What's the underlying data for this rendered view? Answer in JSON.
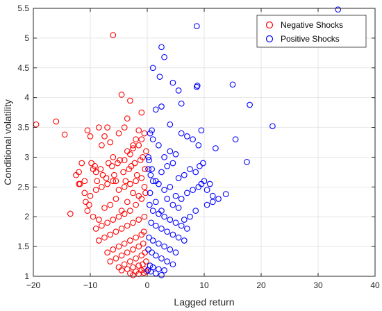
{
  "chart_data": {
    "type": "scatter",
    "title": "",
    "xlabel": "Lagged return",
    "ylabel": "Conditional volatility",
    "xlim": [
      -20,
      40
    ],
    "ylim": [
      1,
      5.5
    ],
    "xticks": [
      -20,
      -10,
      0,
      10,
      20,
      30,
      40
    ],
    "yticks": [
      1,
      1.5,
      2,
      2.5,
      3,
      3.5,
      4,
      4.5,
      5,
      5.5
    ],
    "grid": true,
    "legend_position": "top-right",
    "marker": "open-circle",
    "series": [
      {
        "name": "Negative Shocks",
        "color": "#ff0000",
        "x": [
          -19.5,
          -16,
          -14.5,
          -13.5,
          -12,
          -11.5,
          -10.5,
          -10,
          -9.5,
          -8.5,
          -8,
          -7.5,
          -7,
          -6.5,
          -6,
          -5.5,
          -5,
          -4.5,
          -4,
          -3.5,
          -3,
          -2.5,
          -2,
          -1.5,
          -1,
          -0.5,
          -6,
          -3.5,
          -3,
          -4,
          -2.5,
          -1.5,
          -1,
          -12.5,
          -11.8,
          -11,
          -10.8,
          -10.2,
          -9.8,
          -9.2,
          -9,
          -8.8,
          -8.2,
          -7.8,
          -7.2,
          -6.8,
          -6.2,
          -5.8,
          -5.2,
          -4.8,
          -4.2,
          -3.8,
          -3.2,
          -2.8,
          -2.2,
          -1.8,
          -1.2,
          -0.8,
          -0.4,
          -0.2,
          -10.5,
          -9.5,
          -8.5,
          -7.5,
          -6.5,
          -5.5,
          -4.5,
          -3.5,
          -2.5,
          -1.5,
          -0.5,
          -9,
          -8,
          -7,
          -6,
          -5,
          -4,
          -3,
          -2,
          -1,
          -0.3,
          -8.5,
          -7.5,
          -6.5,
          -5.5,
          -4.5,
          -3.5,
          -2.5,
          -1.5,
          -0.5,
          -7,
          -6,
          -5,
          -4,
          -3,
          -2,
          -1,
          -0.6,
          -6.5,
          -5.5,
          -4.5,
          -3.5,
          -2.5,
          -1.5,
          -0.7,
          -5,
          -4,
          -3,
          -2,
          -1,
          -0.4,
          -4.5,
          -3.5,
          -2.5,
          -1.5,
          -0.8,
          -0.2,
          -3,
          -2,
          -1,
          -0.5,
          -2.5,
          -1.5,
          -0.6,
          -0.1,
          -12,
          -11,
          -10,
          -9,
          -8,
          -7,
          -6,
          -5,
          -4,
          -3,
          -2,
          -1
        ],
        "y": [
          3.55,
          3.6,
          3.38,
          2.05,
          2.75,
          2.9,
          3.45,
          3.35,
          2.8,
          3.5,
          3.2,
          3.35,
          3.5,
          3.25,
          5.05,
          2.6,
          3.4,
          4.05,
          3.5,
          3.65,
          3.95,
          3.2,
          3.3,
          3.45,
          3.75,
          3.4,
          3.0,
          3.1,
          3.05,
          2.95,
          3.15,
          3.2,
          3.3,
          2.7,
          2.55,
          2.6,
          2.25,
          2.2,
          2.9,
          2.85,
          2.75,
          2.6,
          2.8,
          2.7,
          2.65,
          2.9,
          2.85,
          2.7,
          2.9,
          2.95,
          2.75,
          2.6,
          2.8,
          2.85,
          2.9,
          2.7,
          2.95,
          3.0,
          2.8,
          3.1,
          2.1,
          2.0,
          1.95,
          2.15,
          2.2,
          2.3,
          2.1,
          2.25,
          2.4,
          2.35,
          2.5,
          1.8,
          1.85,
          1.9,
          1.95,
          2.0,
          2.05,
          2.1,
          2.2,
          2.3,
          2.4,
          1.6,
          1.65,
          1.7,
          1.75,
          1.8,
          1.85,
          1.9,
          1.95,
          2.0,
          1.4,
          1.45,
          1.5,
          1.55,
          1.6,
          1.65,
          1.7,
          1.75,
          1.25,
          1.3,
          1.35,
          1.4,
          1.45,
          1.5,
          1.55,
          1.15,
          1.2,
          1.25,
          1.3,
          1.35,
          1.4,
          1.1,
          1.12,
          1.15,
          1.18,
          1.2,
          1.25,
          1.05,
          1.08,
          1.1,
          1.12,
          1.02,
          1.04,
          1.06,
          1.08,
          2.55,
          2.4,
          2.35,
          2.45,
          2.5,
          2.55,
          2.6,
          2.45,
          2.5,
          2.55,
          2.6,
          2.65
        ]
      },
      {
        "name": "Positive Shocks",
        "color": "#0000ff",
        "x": [
          33.5,
          8.7,
          2.5,
          3,
          1,
          2.2,
          8.8,
          8.7,
          5.5,
          4.5,
          15,
          6,
          18,
          2.5,
          1.5,
          22,
          4,
          0.8,
          15.5,
          12,
          9.5,
          17.5,
          13.8,
          11.5,
          10.5,
          9,
          8,
          7,
          6,
          5,
          4,
          3,
          2,
          1,
          0.5,
          0.2,
          9.8,
          9.2,
          8.5,
          7.5,
          6.5,
          5.5,
          4.5,
          3.5,
          2.5,
          1.5,
          0.8,
          0.3,
          11,
          10,
          9,
          8,
          7,
          6,
          5,
          4,
          3,
          2,
          1,
          0.6,
          0.2,
          8.5,
          7.5,
          6.5,
          5.5,
          4.5,
          3.5,
          2.5,
          1.5,
          0.5,
          7,
          6,
          5,
          4,
          3,
          2,
          1,
          0.4,
          6.5,
          5.5,
          4.5,
          3.5,
          2.5,
          1.5,
          0.7,
          5,
          4,
          3,
          2,
          1,
          0.3,
          4.5,
          3.5,
          2.5,
          1.5,
          0.8,
          0.2,
          3,
          2,
          1,
          0.5,
          2.5,
          1.5,
          0.6,
          0.1,
          12.5,
          11.5,
          10.5,
          9.5
        ],
        "y": [
          5.48,
          5.2,
          4.85,
          4.68,
          4.5,
          4.35,
          4.2,
          4.18,
          4.12,
          4.25,
          4.22,
          3.9,
          3.88,
          3.85,
          3.8,
          3.52,
          3.55,
          3.45,
          3.3,
          3.15,
          3.45,
          2.92,
          2.38,
          2.25,
          2.2,
          3.2,
          3.3,
          3.35,
          3.4,
          3.05,
          3.1,
          3.0,
          3.2,
          3.3,
          3.4,
          3.0,
          2.9,
          2.85,
          2.75,
          2.8,
          2.7,
          2.65,
          2.9,
          2.85,
          2.75,
          2.6,
          2.8,
          2.95,
          2.55,
          2.6,
          2.5,
          2.45,
          2.4,
          2.3,
          2.35,
          2.5,
          2.45,
          2.55,
          2.6,
          2.7,
          2.8,
          2.1,
          2.0,
          1.95,
          2.15,
          2.2,
          2.3,
          2.1,
          2.25,
          2.4,
          1.8,
          1.85,
          1.9,
          1.95,
          2.0,
          2.05,
          2.1,
          2.2,
          1.6,
          1.65,
          1.7,
          1.75,
          1.8,
          1.85,
          1.9,
          1.4,
          1.45,
          1.5,
          1.55,
          1.6,
          1.65,
          1.2,
          1.25,
          1.3,
          1.35,
          1.4,
          1.45,
          1.1,
          1.12,
          1.15,
          1.18,
          1.02,
          1.05,
          1.08,
          1.1,
          2.3,
          2.35,
          2.45,
          2.55
        ]
      }
    ]
  }
}
